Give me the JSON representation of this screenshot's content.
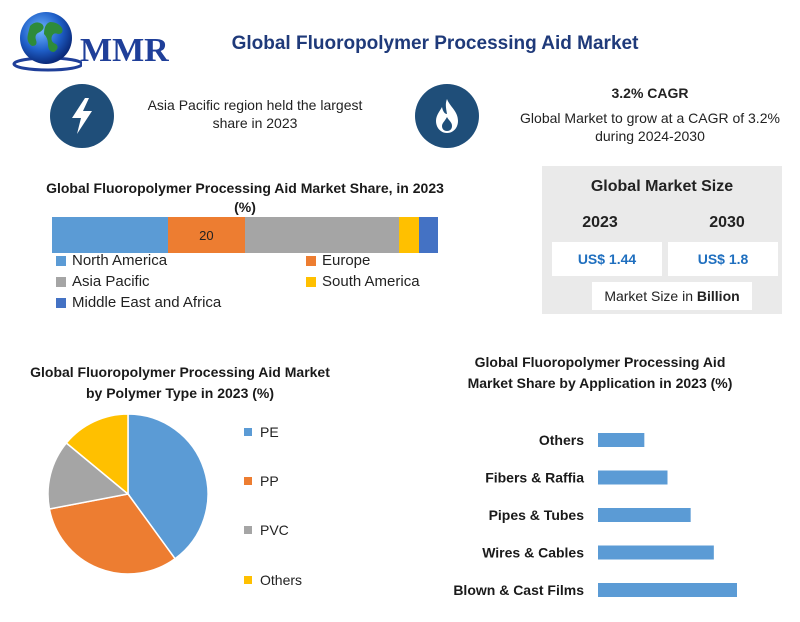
{
  "header": {
    "logo_text": "MMR",
    "title": "Global Fluoropolymer Processing Aid Market"
  },
  "facts": {
    "region_text": "Asia Pacific region held the largest share in 2023",
    "cagr_title": "3.2% CAGR",
    "cagr_text": "Global Market to grow at a CAGR of 3.2% during 2024-2030"
  },
  "market_size": {
    "title": "Global Market Size",
    "year_a": "2023",
    "year_b": "2030",
    "value_a": "US$ 1.44",
    "value_b": "US$ 1.8",
    "unit_prefix": "Market Size in ",
    "unit_bold": "Billion"
  },
  "colors": {
    "blue": "#5b9bd5",
    "orange": "#ed7d31",
    "gray": "#a5a5a5",
    "yellow": "#ffc000",
    "darkblue": "#4472c4",
    "icon_bg": "#1f4e79"
  },
  "icons": [
    "lightning-icon",
    "flame-icon",
    "globe-icon"
  ],
  "chart_data": [
    {
      "type": "bar",
      "stacked": true,
      "orientation": "horizontal",
      "title": "Global Fluoropolymer Processing Aid Market Share, in 2023 (%)",
      "series": [
        {
          "name": "North America",
          "value": 30,
          "color": "#5b9bd5",
          "label": ""
        },
        {
          "name": "Europe",
          "value": 20,
          "color": "#ed7d31",
          "label": "20"
        },
        {
          "name": "Asia Pacific",
          "value": 40,
          "color": "#a5a5a5",
          "label": ""
        },
        {
          "name": "South America",
          "value": 5,
          "color": "#ffc000",
          "label": ""
        },
        {
          "name": "Middle East and Africa",
          "value": 5,
          "color": "#4472c4",
          "label": ""
        }
      ],
      "legend": "bottom"
    },
    {
      "type": "pie",
      "title": "Global Fluoropolymer Processing Aid Market by Polymer Type in 2023 (%)",
      "slices": [
        {
          "name": "PE",
          "value": 40,
          "color": "#5b9bd5"
        },
        {
          "name": "PP",
          "value": 32,
          "color": "#ed7d31"
        },
        {
          "name": "PVC",
          "value": 14,
          "color": "#a5a5a5"
        },
        {
          "name": "Others",
          "value": 14,
          "color": "#ffc000"
        }
      ],
      "legend": "right"
    },
    {
      "type": "bar",
      "orientation": "horizontal",
      "title": "Global Fluoropolymer Processing Aid Market Share by Application in 2023 (%)",
      "categories": [
        "Others",
        "Fibers & Raffia",
        "Pipes & Tubes",
        "Wires & Cables",
        "Blown & Cast Films"
      ],
      "values": [
        8,
        12,
        16,
        20,
        24
      ],
      "color": "#5b9bd5",
      "xlim": [
        0,
        26
      ]
    }
  ]
}
